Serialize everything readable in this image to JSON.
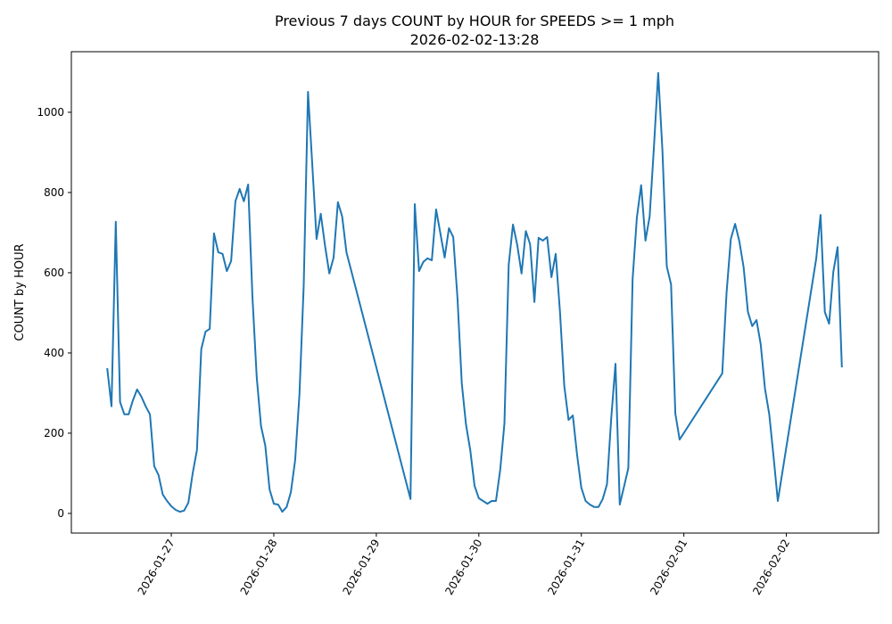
{
  "chart_data": {
    "type": "line",
    "title": "Previous 7 days COUNT by HOUR for SPEEDS >= 1 mph",
    "subtitle": "2026-02-02-13:28",
    "xlabel": "",
    "ylabel": "COUNT by HOUR",
    "x_start": "2026-01-26 09:00",
    "x_unit": "hours since x_start",
    "xlim_hours": [
      -8.4,
      180.6
    ],
    "ylim": [
      -49,
      1151
    ],
    "grid": false,
    "color": "#1f77b4",
    "xticks": [
      {
        "label": "2026-01-27",
        "hours": 15
      },
      {
        "label": "2026-01-28",
        "hours": 39
      },
      {
        "label": "2026-01-29",
        "hours": 63
      },
      {
        "label": "2026-01-30",
        "hours": 87
      },
      {
        "label": "2026-01-31",
        "hours": 111
      },
      {
        "label": "2026-02-01",
        "hours": 135
      },
      {
        "label": "2026-02-02",
        "hours": 159
      }
    ],
    "yticks": [
      0,
      200,
      400,
      600,
      800,
      1000
    ],
    "segments": [
      {
        "start_hour": 0,
        "values": [
          362,
          267,
          727,
          278,
          247,
          247,
          282,
          309,
          291,
          267,
          247,
          118,
          96,
          47,
          31,
          18,
          9,
          4,
          7,
          27,
          100,
          158,
          409,
          453,
          460,
          698,
          651,
          647,
          604,
          629,
          778,
          809,
          778,
          820,
          540,
          340,
          218,
          169,
          60,
          24,
          22,
          4,
          16,
          53,
          133,
          296,
          569,
          1051,
          869,
          684,
          747,
          667,
          598,
          638,
          776,
          740,
          651
        ]
      },
      {
        "start_hour": 71,
        "values": [
          36,
          771,
          604,
          627,
          636,
          631,
          758,
          698,
          638,
          711,
          689,
          536,
          324,
          222,
          158,
          69,
          38,
          31,
          24,
          31,
          31,
          109,
          224,
          620,
          720,
          669,
          598,
          704,
          671,
          527,
          687,
          680,
          689,
          589,
          647,
          502,
          318,
          233,
          244,
          147,
          64,
          31,
          22,
          16,
          16,
          36,
          73,
          236,
          373,
          22,
          67,
          113,
          584,
          738,
          818,
          680,
          740,
          913,
          1098,
          902,
          616,
          571,
          249,
          184
        ]
      },
      {
        "start_hour": 144,
        "values": [
          349,
          549,
          684,
          722,
          678,
          613,
          502,
          467,
          482,
          422,
          311,
          247,
          142,
          31
        ]
      },
      {
        "start_hour": 166,
        "values": [
          636,
          744,
          502,
          473,
          602,
          664,
          364
        ]
      }
    ]
  }
}
